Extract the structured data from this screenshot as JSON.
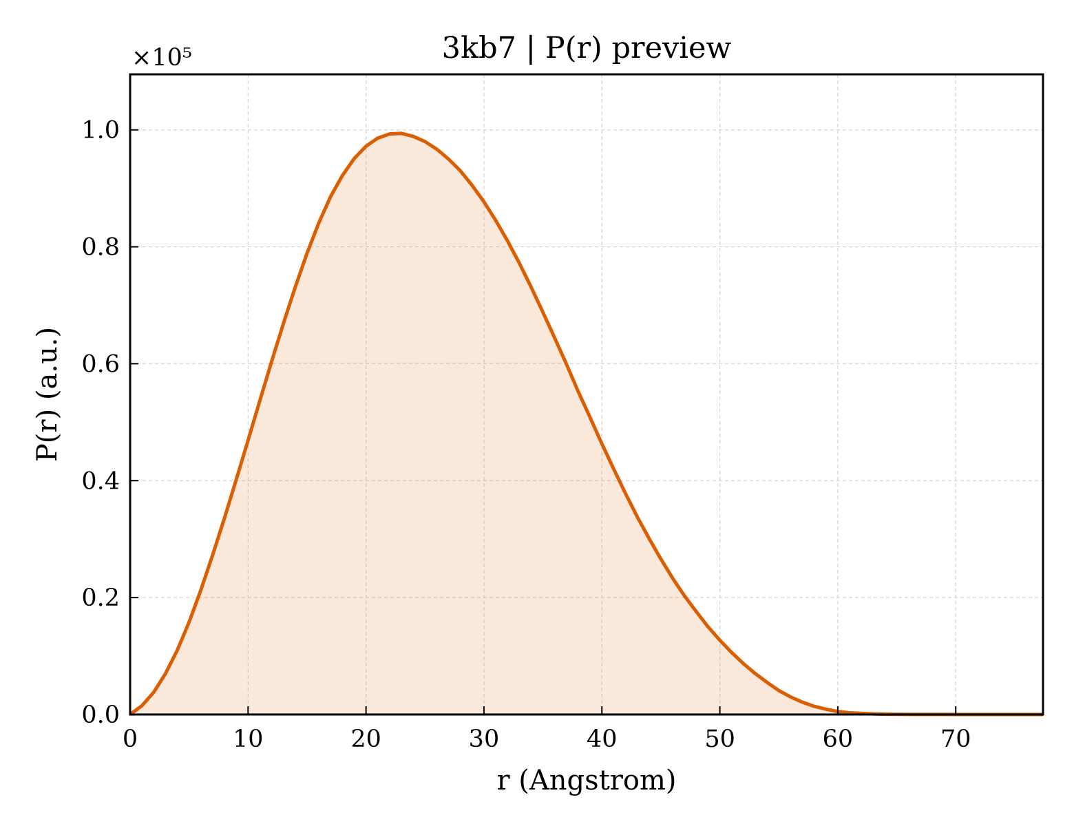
{
  "chart_data": {
    "type": "area",
    "title": "3kb7 | P(r) preview",
    "xlabel": "r (Angstrom)",
    "ylabel": "P(r) (a.u.)",
    "y_multiplier_label": "×10⁵",
    "xlim": [
      0,
      77.4
    ],
    "ylim": [
      0,
      1.095
    ],
    "y_scale_factor": 100000,
    "grid": true,
    "xticks": [
      0,
      10,
      20,
      30,
      40,
      50,
      60,
      70
    ],
    "xtick_labels": [
      "0",
      "10",
      "20",
      "30",
      "40",
      "50",
      "60",
      "70"
    ],
    "yticks": [
      0.0,
      0.2,
      0.4,
      0.6,
      0.8,
      1.0
    ],
    "ytick_labels": [
      "0.0",
      "0.2",
      "0.4",
      "0.6",
      "0.8",
      "1.0"
    ],
    "line_color": "#d95f02",
    "fill_color": "#d95f02",
    "fill_opacity": 0.14,
    "series": [
      {
        "x": [
          0,
          1,
          2,
          3,
          4,
          5,
          6,
          7,
          8,
          9,
          10,
          11,
          12,
          13,
          14,
          15,
          16,
          17,
          18,
          19,
          20,
          21,
          22,
          23,
          24,
          25,
          26,
          27,
          28,
          29,
          30,
          31,
          32,
          33,
          34,
          35,
          36,
          37,
          38,
          39,
          40,
          41,
          42,
          43,
          44,
          45,
          46,
          47,
          48,
          49,
          50,
          51,
          52,
          53,
          54,
          55,
          56,
          57,
          58,
          59,
          60,
          61,
          62,
          63,
          64,
          65,
          66,
          67,
          68,
          69,
          70,
          71,
          72,
          73,
          74,
          75,
          76,
          77.4
        ],
        "y": [
          0.0,
          0.015,
          0.038,
          0.07,
          0.11,
          0.158,
          0.213,
          0.273,
          0.336,
          0.402,
          0.469,
          0.537,
          0.604,
          0.669,
          0.731,
          0.789,
          0.841,
          0.886,
          0.922,
          0.951,
          0.972,
          0.986,
          0.993,
          0.994,
          0.989,
          0.98,
          0.967,
          0.95,
          0.93,
          0.905,
          0.877,
          0.845,
          0.81,
          0.772,
          0.731,
          0.688,
          0.644,
          0.599,
          0.552,
          0.508,
          0.463,
          0.42,
          0.378,
          0.338,
          0.301,
          0.266,
          0.233,
          0.203,
          0.176,
          0.15,
          0.127,
          0.106,
          0.087,
          0.07,
          0.055,
          0.041,
          0.03,
          0.021,
          0.014,
          0.009,
          0.005,
          0.003,
          0.002,
          0.001,
          0.0005,
          0.0003,
          0.0002,
          0.0001,
          0.0001,
          0.0001,
          0.0,
          0.0,
          0.0,
          0.0,
          0.0,
          0.0,
          0.0,
          0.0
        ]
      }
    ]
  }
}
